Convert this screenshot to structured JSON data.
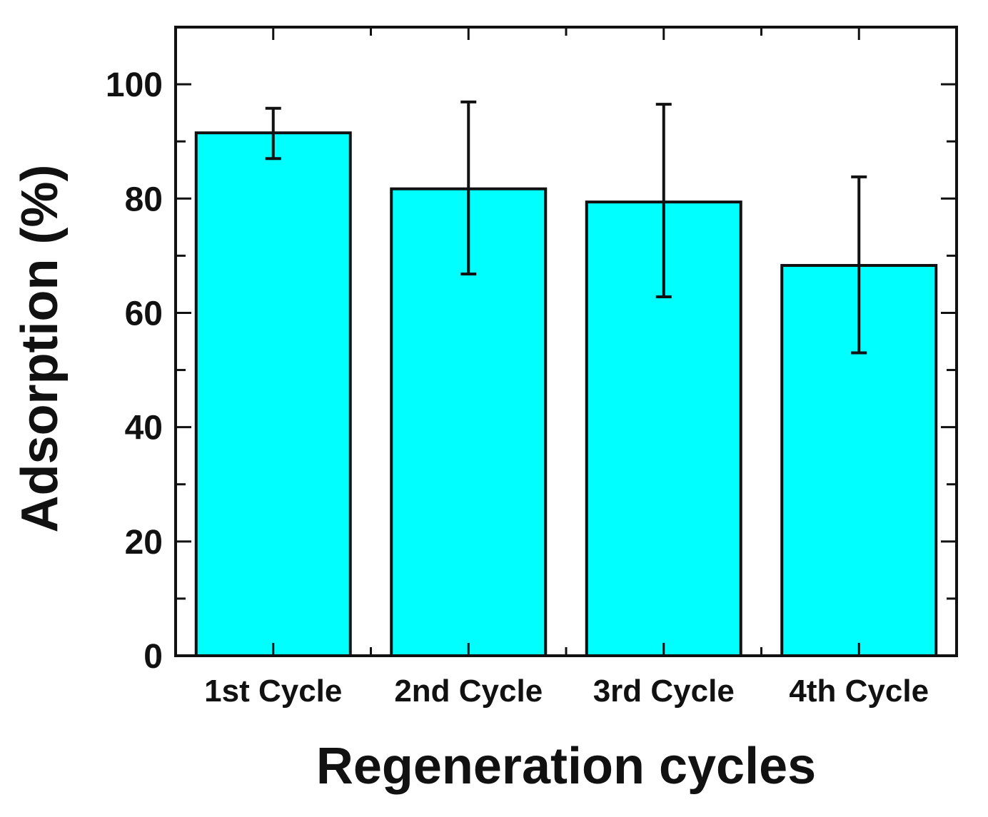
{
  "chart_data": {
    "type": "bar",
    "categories": [
      "1st Cycle",
      "2nd Cycle",
      "3rd Cycle",
      "4th Cycle"
    ],
    "values": [
      91.5,
      81.7,
      79.4,
      68.3
    ],
    "error_bars": [
      {
        "low": 87.0,
        "high": 95.8
      },
      {
        "low": 66.8,
        "high": 96.9
      },
      {
        "low": 62.8,
        "high": 96.5
      },
      {
        "low": 53.0,
        "high": 83.8
      }
    ],
    "xlabel": "Regeneration cycles",
    "ylabel": "Adsorption (%)",
    "ylim": [
      0,
      110
    ],
    "yticks": [
      0,
      20,
      40,
      60,
      80,
      100
    ],
    "y_minor_step": 10,
    "grid": false,
    "legend": "none",
    "colors": {
      "bar_fill": "#00ffff",
      "bar_edge": "#111111",
      "axes": "#111111"
    }
  }
}
